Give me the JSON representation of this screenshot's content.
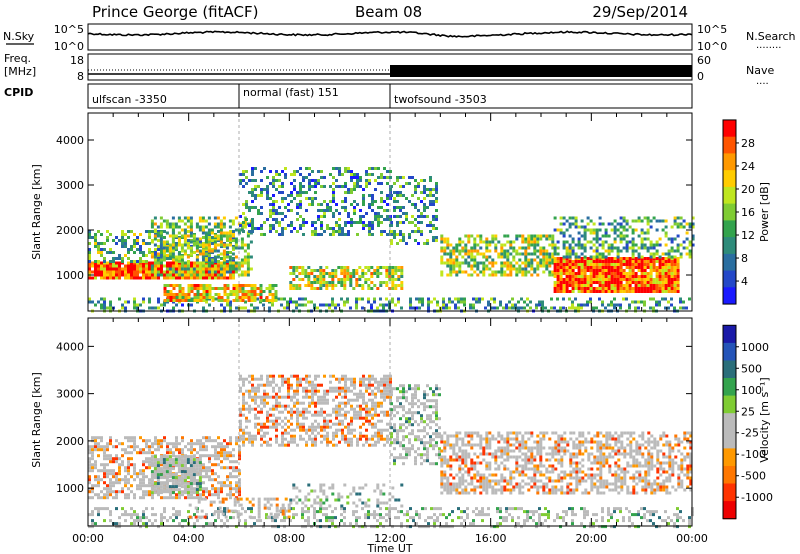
{
  "header": {
    "title": "Prince George (fitACF)",
    "beam": "Beam 08",
    "date": "29/Sep/2014"
  },
  "panels": {
    "sky": {
      "left_label": "N.Sky",
      "left_ticks": [
        "10^5",
        "10^0"
      ],
      "right_ticks": [
        "10^5",
        "10^0"
      ],
      "right_label": "N.Search",
      "right_dots": "........"
    },
    "freq": {
      "left_label_1": "Freq.",
      "left_label_2": "[MHz]",
      "left_ticks": [
        "18",
        "8"
      ],
      "right_ticks": [
        "60",
        "0"
      ],
      "right_label": "Nave",
      "right_dots": "....",
      "cpid_label": "CPID"
    },
    "cpid_segments": [
      {
        "label": "ulfscan -3350",
        "start_h": 0,
        "end_h": 6
      },
      {
        "label": "normal (fast) 151",
        "start_h": 6,
        "end_h": 12
      },
      {
        "label": "twofsound -3503",
        "start_h": 12,
        "end_h": 24
      }
    ]
  },
  "chart_data": [
    {
      "type": "heatmap",
      "name": "power",
      "ylabel": "Slant Range [km]",
      "y_ticks": [
        1000,
        2000,
        3000,
        4000
      ],
      "ylim": [
        200,
        4600
      ],
      "colorbar_label": "Power [dB]",
      "colorbar_ticks": [
        "28",
        "24",
        "20",
        "16",
        "12",
        "8",
        "4"
      ],
      "colorbar_colors": [
        "#ff0000",
        "#ff5500",
        "#ff9900",
        "#ffcc00",
        "#bfe61f",
        "#7fcc33",
        "#33a34d",
        "#2e8b7a",
        "#2a6ea0",
        "#2448c8",
        "#1a1aff"
      ],
      "scatter_regions": [
        {
          "x0": 0,
          "x1": 5.8,
          "y0": 900,
          "y1": 1300,
          "level": 0.95
        },
        {
          "x0": 0,
          "x1": 5.8,
          "y0": 1300,
          "y1": 2000,
          "level": 0.45
        },
        {
          "x0": 2.5,
          "x1": 6.5,
          "y0": 1000,
          "y1": 2300,
          "level": 0.55
        },
        {
          "x0": 6.0,
          "x1": 12.0,
          "y0": 1900,
          "y1": 3400,
          "level": 0.35
        },
        {
          "x0": 12.0,
          "x1": 13.8,
          "y0": 1700,
          "y1": 3200,
          "level": 0.4
        },
        {
          "x0": 14.0,
          "x1": 18.5,
          "y0": 1000,
          "y1": 1900,
          "level": 0.6
        },
        {
          "x0": 18.5,
          "x1": 23.5,
          "y0": 600,
          "y1": 1400,
          "level": 0.95
        },
        {
          "x0": 18.5,
          "x1": 24.0,
          "y0": 1400,
          "y1": 2300,
          "level": 0.45
        },
        {
          "x0": 0,
          "x1": 24,
          "y0": 200,
          "y1": 500,
          "level": 0.4
        },
        {
          "x0": 3.0,
          "x1": 7.5,
          "y0": 400,
          "y1": 800,
          "level": 0.75
        },
        {
          "x0": 8.0,
          "x1": 12.5,
          "y0": 700,
          "y1": 1200,
          "level": 0.65
        }
      ]
    },
    {
      "type": "heatmap",
      "name": "velocity",
      "xlabel": "Time UT",
      "ylabel": "Slant Range [km]",
      "x_ticks": [
        "00:00",
        "04:00",
        "08:00",
        "12:00",
        "16:00",
        "20:00",
        "00:00"
      ],
      "xlim": [
        0,
        24
      ],
      "y_ticks": [
        1000,
        2000,
        3000,
        4000
      ],
      "ylim": [
        200,
        4600
      ],
      "colorbar_label": "Velocity [m s⁻¹]",
      "colorbar_ticks": [
        "1000",
        "500",
        "100",
        "25",
        "-25",
        "-100",
        "-500",
        "-1000"
      ],
      "colorbar_colors": [
        "#1a1aa8",
        "#2454b8",
        "#2a6e7a",
        "#33a34d",
        "#7fcc33",
        "#bbbbbb",
        "#bbbbbb",
        "#ff9900",
        "#ff7700",
        "#ff3300",
        "#ee0000"
      ],
      "scatter_regions": [
        {
          "x0": 0,
          "x1": 6.0,
          "y0": 800,
          "y1": 2100,
          "level": 0.55
        },
        {
          "x0": 2.5,
          "x1": 4.5,
          "y0": 900,
          "y1": 1700,
          "level": 0.85
        },
        {
          "x0": 6.0,
          "x1": 12.0,
          "y0": 1900,
          "y1": 3400,
          "level": 0.55
        },
        {
          "x0": 12.0,
          "x1": 14.0,
          "y0": 1500,
          "y1": 3200,
          "level": 0.5
        },
        {
          "x0": 14.0,
          "x1": 24.0,
          "y0": 900,
          "y1": 2200,
          "level": 0.55
        },
        {
          "x0": 0,
          "x1": 24,
          "y0": 200,
          "y1": 600,
          "level": 0.35
        },
        {
          "x0": 4.0,
          "x1": 8.0,
          "y0": 400,
          "y1": 800,
          "level": 0.3
        },
        {
          "x0": 8.0,
          "x1": 12.5,
          "y0": 600,
          "y1": 1100,
          "level": 0.3
        }
      ]
    }
  ]
}
